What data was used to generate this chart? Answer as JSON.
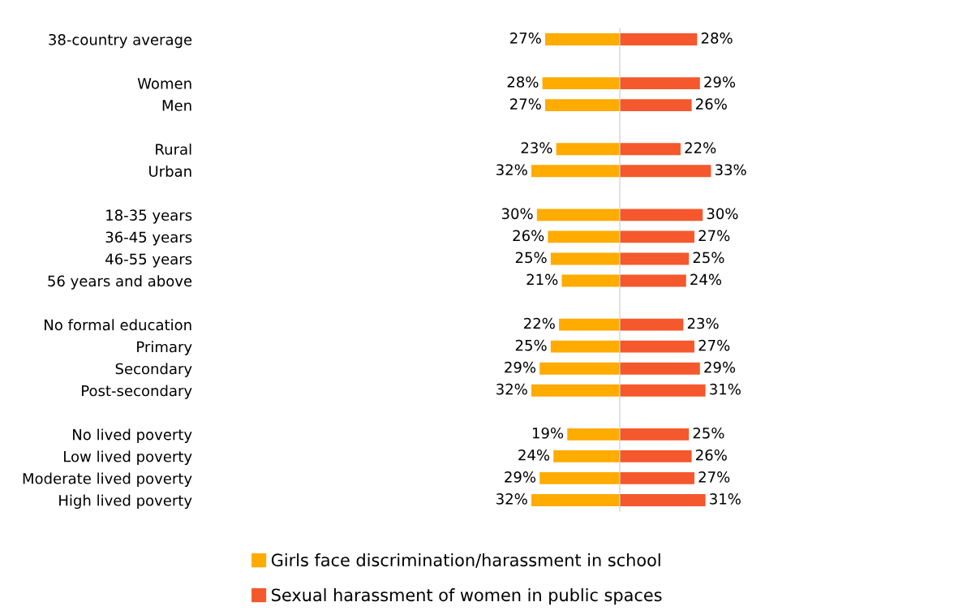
{
  "chart_data": [
    {
      "type": "bar",
      "orientation": "horizontal",
      "tick_labels": "y",
      "legend": "bottom",
      "categories": [
        "38-country average",
        null,
        "Women",
        "Men",
        null,
        "Rural",
        "Urban",
        null,
        "18-35 years",
        "36-45 years",
        "46-55 years",
        "56 years and above",
        null,
        "No formal education",
        "Primary",
        "Secondary",
        "Post-secondary",
        null,
        "No lived poverty",
        "Low lived poverty",
        "Moderate lived poverty",
        "High lived poverty"
      ],
      "series": [
        {
          "name": "Girls face discrimination/harassment in school",
          "color": "#ffab00",
          "values": [
            27,
            null,
            28,
            27,
            null,
            23,
            32,
            null,
            30,
            26,
            25,
            21,
            null,
            22,
            25,
            29,
            32,
            null,
            19,
            24,
            29,
            32
          ],
          "value_labels": [
            "27%",
            null,
            "28%",
            "27%",
            null,
            "23%",
            "32%",
            null,
            "30%",
            "26%",
            "25%",
            "21%",
            null,
            "22%",
            "25%",
            "29%",
            "32%",
            null,
            "19%",
            "24%",
            "29%",
            "32%"
          ]
        }
      ]
    },
    {
      "type": "bar",
      "orientation": "horizontal",
      "tick_labels": false,
      "legend": "bottom",
      "categories": [
        null,
        null,
        null,
        null,
        null,
        null,
        null,
        null,
        null,
        null,
        null,
        null,
        null,
        null,
        null,
        null,
        null,
        null,
        null,
        null,
        null,
        null
      ],
      "series": [
        {
          "name": "Sexual harassment of women in public spaces",
          "color": "#f5582c",
          "values": [
            28,
            null,
            29,
            26,
            null,
            22,
            33,
            null,
            30,
            27,
            25,
            24,
            null,
            23,
            27,
            29,
            31,
            null,
            25,
            26,
            27,
            31
          ],
          "value_labels": [
            "28%",
            null,
            "29%",
            "26%",
            null,
            "22%",
            "33%",
            null,
            "30%",
            "27%",
            "25%",
            "24%",
            null,
            "23%",
            "27%",
            "29%",
            "31%",
            null,
            "25%",
            "26%",
            "27%",
            "31%"
          ]
        }
      ]
    }
  ]
}
